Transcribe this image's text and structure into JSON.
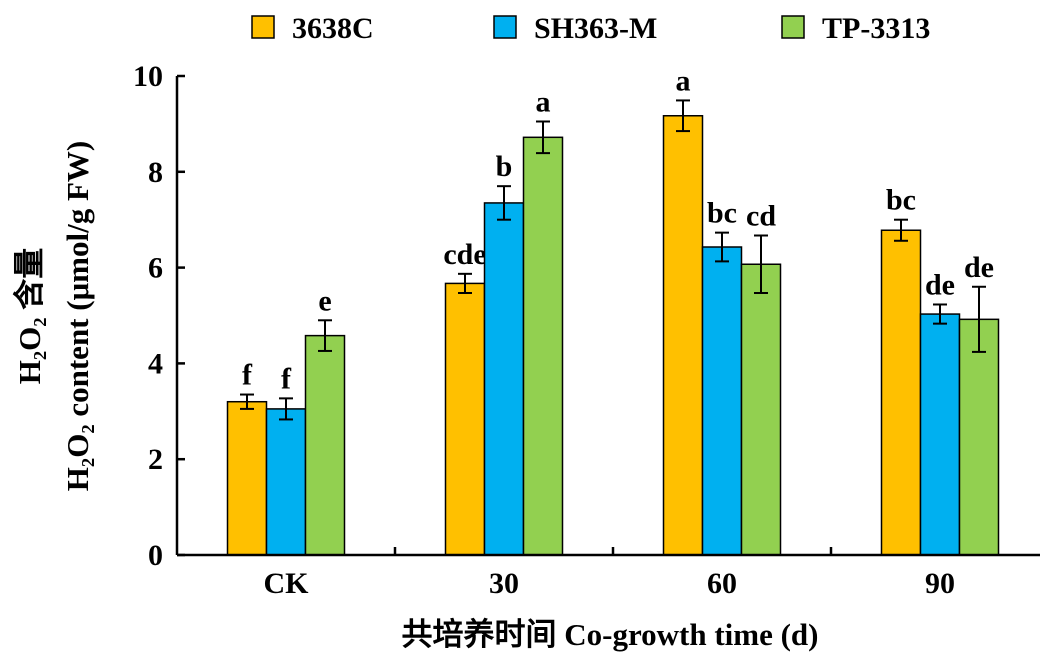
{
  "colors": {
    "series": [
      "#FFC000",
      "#00B0F0",
      "#92D050"
    ]
  },
  "chart_data": {
    "type": "bar",
    "categories": [
      "CK",
      "30",
      "60",
      "90"
    ],
    "series": [
      {
        "name": "3638C",
        "values": [
          3.2,
          5.67,
          9.17,
          6.78
        ],
        "errors": [
          0.15,
          0.2,
          0.32,
          0.22
        ],
        "letters": [
          "f",
          "cde",
          "a",
          "bc"
        ]
      },
      {
        "name": "SH363-M",
        "values": [
          3.05,
          7.35,
          6.43,
          5.03
        ],
        "errors": [
          0.22,
          0.35,
          0.3,
          0.2
        ],
        "letters": [
          "f",
          "b",
          "bc",
          "de"
        ]
      },
      {
        "name": "TP-3313",
        "values": [
          4.58,
          8.72,
          6.07,
          4.92
        ],
        "errors": [
          0.32,
          0.33,
          0.6,
          0.68
        ],
        "letters": [
          "e",
          "a",
          "cd",
          "de"
        ]
      }
    ],
    "ylim": [
      0,
      10
    ],
    "yticks": [
      "0",
      "2",
      "4",
      "6",
      "8",
      "10"
    ],
    "ylabel_line1": "H₂O₂ 含量",
    "ylabel_line2": "H₂O₂ content (μmol/g FW)",
    "xlabel": "共培养时间 Co-growth time (d)",
    "legend_position": "top",
    "grid": false
  }
}
